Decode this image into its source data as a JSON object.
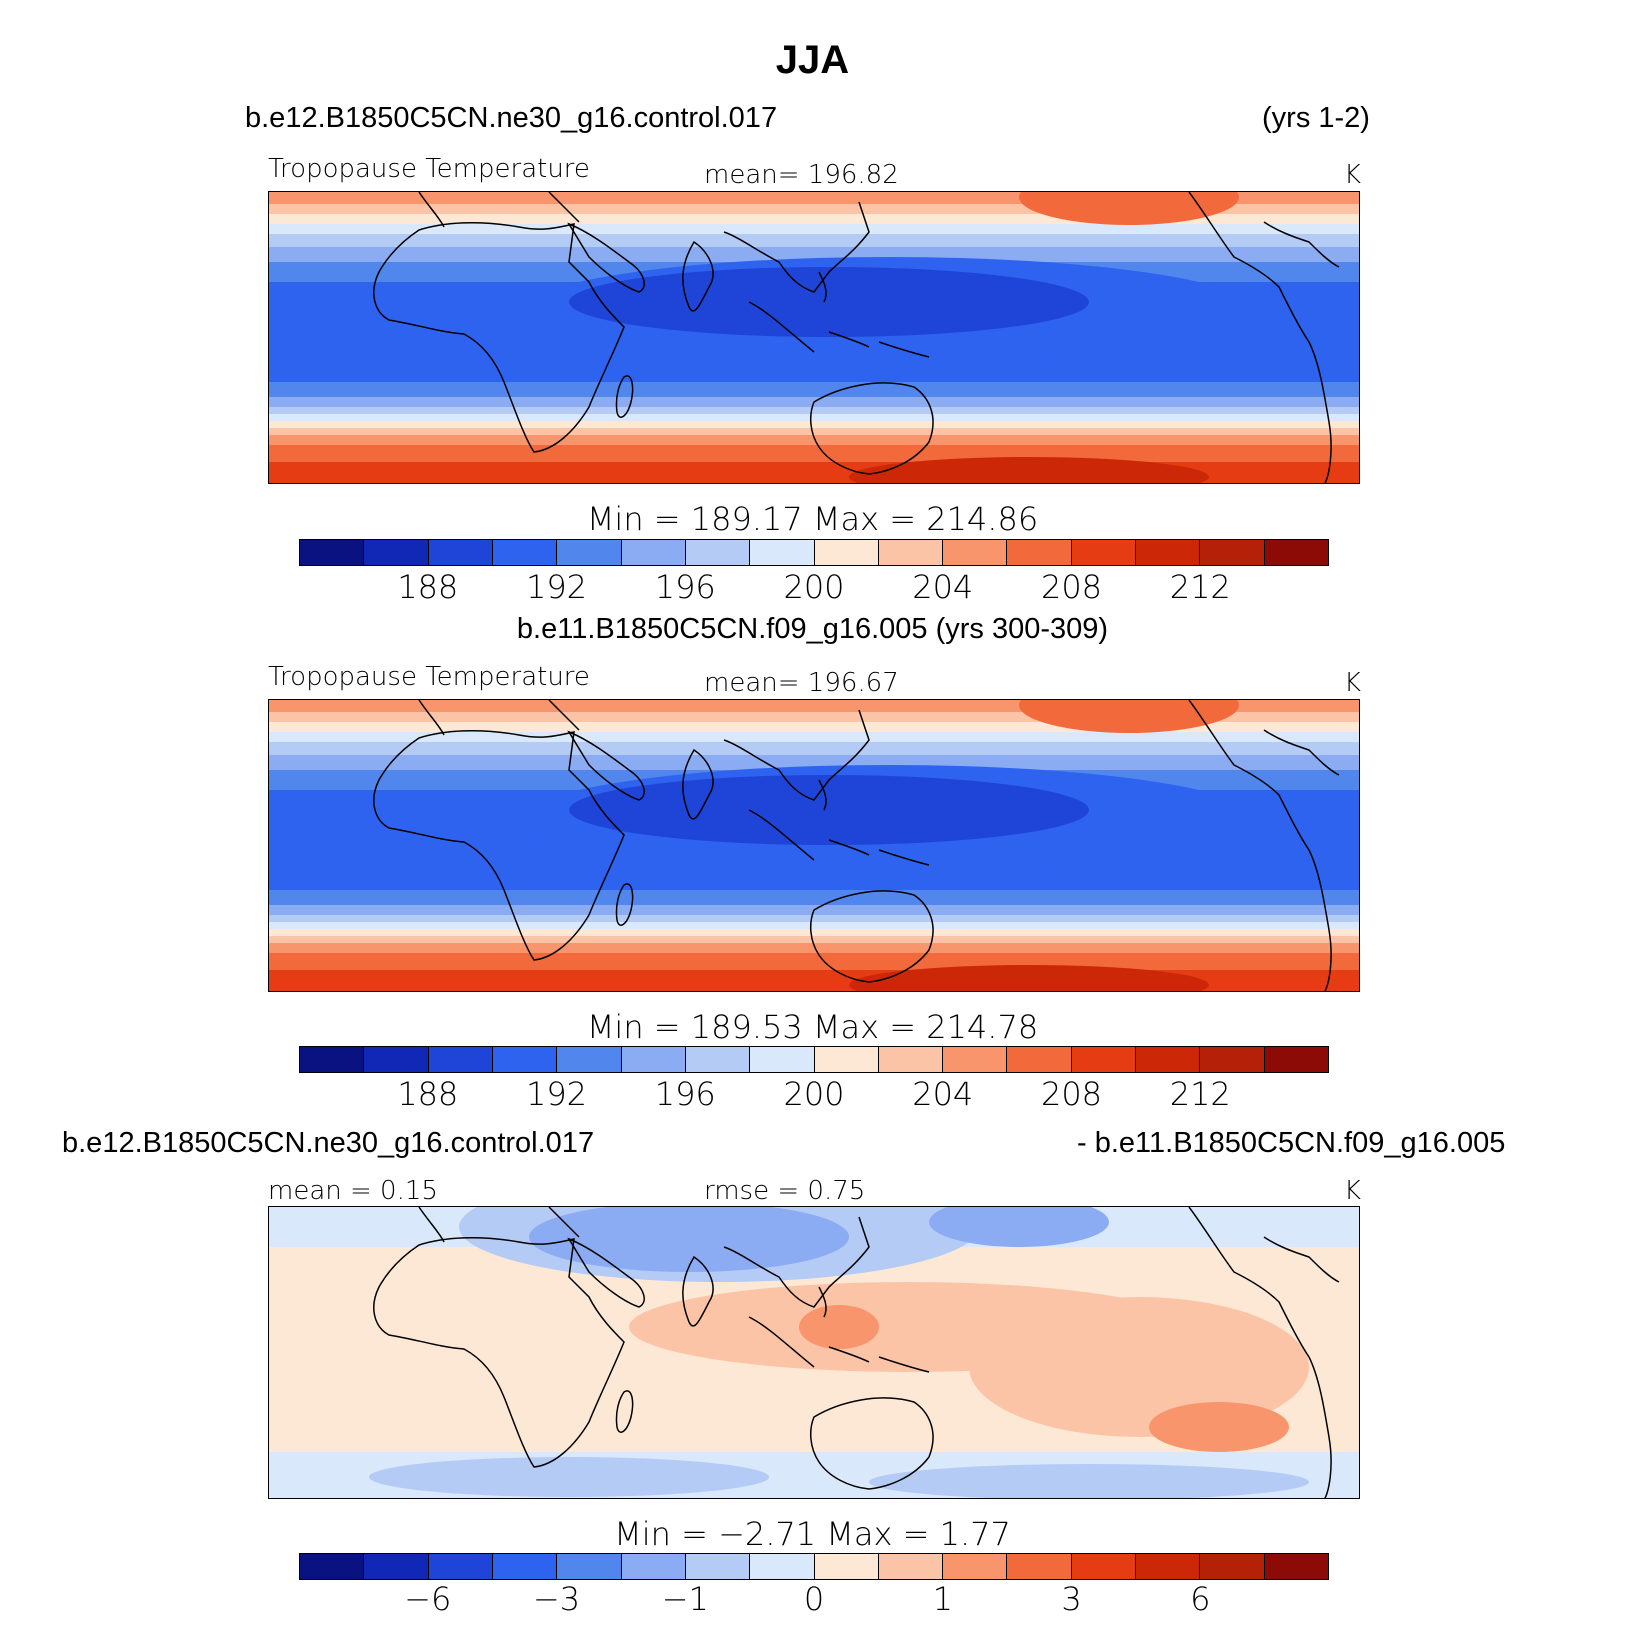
{
  "title": "JJA",
  "colors": [
    "#0a1180",
    "#1127b6",
    "#1f45d8",
    "#2e63f0",
    "#5186ed",
    "#8bacf3",
    "#b4cbf6",
    "#d9e8fa",
    "#fde8d6",
    "#fcc4a6",
    "#f9956d",
    "#f26a3c",
    "#e63c14",
    "#cc2808",
    "#b52009",
    "#8c0b06"
  ],
  "panels": [
    {
      "case_left": "b.e12.B1850C5CN.ne30_g16.control.017",
      "case_right": "(yrs 1-2)",
      "left_label": "Tropopause  Temperature",
      "center_label": "mean=  196.82",
      "right_label": "K",
      "minmax": "Min  =  189.17  Max  =  214.86",
      "ticks": [
        "188",
        "192",
        "196",
        "200",
        "204",
        "208",
        "212"
      ],
      "field": {
        "cold_index": 3,
        "coldest_index": 2
      }
    },
    {
      "case_title": "b.e11.B1850C5CN.f09_g16.005 (yrs 300-309)",
      "left_label": "Tropopause  Temperature",
      "center_label": "mean=  196.67",
      "right_label": "K",
      "minmax": "Min  =  189.53  Max  =  214.78",
      "ticks": [
        "188",
        "192",
        "196",
        "200",
        "204",
        "208",
        "212"
      ],
      "field": {
        "cold_index": 3,
        "coldest_index": 2
      }
    },
    {
      "case_left": "b.e12.B1850C5CN.ne30_g16.control.017",
      "case_right": "- b.e11.B1850C5CN.f09_g16.005",
      "left_label": "mean  =     0.15",
      "center_label": "rmse  =     0.75",
      "right_label": "K",
      "minmax": "Min  =    −2.71  Max  =     1.77",
      "ticks": [
        "−6",
        "−3",
        "−1",
        "0",
        "1",
        "3",
        "6"
      ]
    }
  ]
}
